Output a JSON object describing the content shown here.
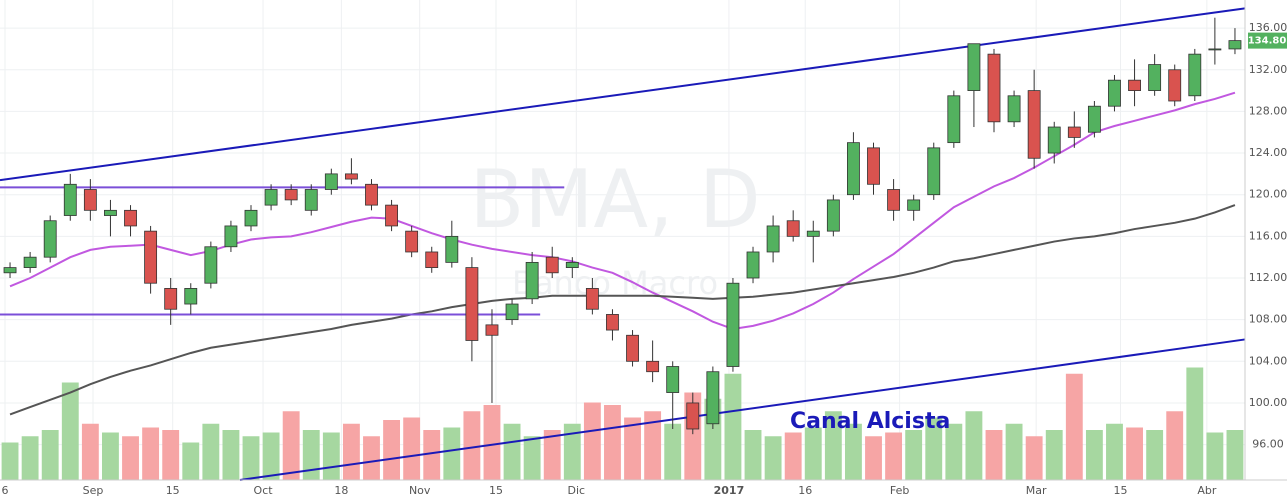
{
  "chart_data": {
    "type": "candlestick",
    "watermark": "BMA, D",
    "watermark_subtitle": "Banco Macro",
    "annotation": "Canal Alcista",
    "up_color": "#53b15f",
    "down_color": "#d9534f",
    "up_volume_color": "#a6d7a0",
    "down_volume_color": "#f6a5a5",
    "ma_series": [
      {
        "color": "#c158e0",
        "values": [
          111.2,
          112.0,
          113.0,
          114.0,
          114.7,
          115.0,
          115.1,
          115.2,
          114.7,
          114.2,
          114.6,
          115.2,
          115.7,
          115.9,
          116.0,
          116.4,
          116.9,
          117.4,
          117.8,
          117.7,
          117.0,
          116.3,
          115.7,
          115.2,
          114.8,
          114.5,
          114.2,
          114.0,
          113.6,
          113.0,
          112.5,
          111.6,
          110.6,
          109.7,
          108.8,
          107.8,
          107.1,
          107.4,
          107.9,
          108.6,
          109.5,
          110.6,
          111.9,
          113.1,
          114.3,
          115.8,
          117.3,
          118.8,
          119.8,
          120.8,
          121.6,
          122.6,
          123.7,
          124.8,
          126.0,
          126.6,
          127.1,
          127.6,
          128.1,
          128.7,
          129.2,
          129.8
        ]
      },
      {
        "color": "#555555",
        "values": [
          98.9,
          99.6,
          100.3,
          101.0,
          101.8,
          102.5,
          103.1,
          103.6,
          104.2,
          104.8,
          105.3,
          105.6,
          105.9,
          106.2,
          106.5,
          106.8,
          107.1,
          107.5,
          107.8,
          108.1,
          108.5,
          108.8,
          109.2,
          109.5,
          109.8,
          110.0,
          110.1,
          110.3,
          110.3,
          110.3,
          110.3,
          110.3,
          110.3,
          110.2,
          110.1,
          110.0,
          110.1,
          110.2,
          110.4,
          110.6,
          110.9,
          111.2,
          111.5,
          111.8,
          112.1,
          112.5,
          113.0,
          113.6,
          113.9,
          114.3,
          114.7,
          115.1,
          115.5,
          115.8,
          116.0,
          116.3,
          116.7,
          117.0,
          117.3,
          117.7,
          118.3,
          119.0
        ]
      }
    ],
    "ohlc": [
      [
        112.5,
        113.5,
        112,
        113
      ],
      [
        113,
        114.5,
        112.5,
        114
      ],
      [
        114,
        118,
        113.5,
        117.5
      ],
      [
        118,
        122,
        117.5,
        121
      ],
      [
        120.5,
        121.5,
        117.5,
        118.5
      ],
      [
        118,
        119.5,
        116,
        118.5
      ],
      [
        118.5,
        119,
        116,
        117
      ],
      [
        116.5,
        117,
        110.5,
        111.5
      ],
      [
        111,
        112,
        107.5,
        109
      ],
      [
        109.5,
        111.5,
        108.5,
        111
      ],
      [
        111.5,
        115.5,
        111,
        115
      ],
      [
        115,
        117.5,
        114.5,
        117
      ],
      [
        117,
        119,
        116.5,
        118.5
      ],
      [
        119,
        121,
        118.5,
        120.5
      ],
      [
        120.5,
        121,
        119,
        119.5
      ],
      [
        118.5,
        121,
        118,
        120.5
      ],
      [
        120.5,
        122.5,
        120,
        122
      ],
      [
        122,
        123.5,
        121,
        121.5
      ],
      [
        121,
        121.5,
        118.5,
        119
      ],
      [
        119,
        119.5,
        116.5,
        117
      ],
      [
        116.5,
        117,
        114,
        114.5
      ],
      [
        114.5,
        115,
        112.5,
        113
      ],
      [
        113.5,
        117.5,
        113,
        116
      ],
      [
        113,
        114,
        104,
        106
      ],
      [
        107.5,
        109,
        100,
        106.5
      ],
      [
        108,
        110,
        107.5,
        109.5
      ],
      [
        110,
        114.5,
        109.5,
        113.5
      ],
      [
        114,
        115,
        112,
        112.5
      ],
      [
        113,
        114,
        112,
        113.5
      ],
      [
        111,
        112,
        108.5,
        109
      ],
      [
        108.5,
        109,
        106,
        107
      ],
      [
        106.5,
        107,
        103.5,
        104
      ],
      [
        104,
        106,
        102,
        103
      ],
      [
        101,
        104,
        97.5,
        103.5
      ],
      [
        100,
        101,
        97,
        97.5
      ],
      [
        98,
        103.5,
        97.5,
        103
      ],
      [
        103.5,
        112,
        103,
        111.5
      ],
      [
        112,
        115,
        111.5,
        114.5
      ],
      [
        114.5,
        118,
        113.5,
        117
      ],
      [
        117.5,
        118.5,
        115.5,
        116
      ],
      [
        116,
        117.5,
        113.5,
        116.5
      ],
      [
        116.5,
        120,
        116,
        119.5
      ],
      [
        120,
        126,
        119.5,
        125
      ],
      [
        124.5,
        125,
        120,
        121
      ],
      [
        120.5,
        121.5,
        117.5,
        118.5
      ],
      [
        118.5,
        120,
        117.5,
        119.5
      ],
      [
        120,
        125,
        119.5,
        124.5
      ],
      [
        125,
        130,
        124.5,
        129.5
      ],
      [
        130,
        134.5,
        126.5,
        134.5
      ],
      [
        133.5,
        134,
        126,
        127
      ],
      [
        127,
        130,
        126.5,
        129.5
      ],
      [
        130,
        132,
        122.5,
        123.5
      ],
      [
        124,
        127,
        123,
        126.5
      ],
      [
        126.5,
        128,
        124.5,
        125.5
      ],
      [
        126,
        129,
        125.5,
        128.5
      ],
      [
        128.5,
        131.5,
        128,
        131
      ],
      [
        131,
        133,
        128.5,
        130
      ],
      [
        130,
        133.5,
        129.5,
        132.5
      ],
      [
        132,
        132.5,
        128.5,
        129
      ],
      [
        129.5,
        134,
        129,
        133.5
      ],
      [
        134,
        137,
        132.5,
        134
      ],
      [
        134,
        136,
        133.5,
        134.8
      ]
    ],
    "volumes": [
      30,
      35,
      40,
      78,
      45,
      38,
      35,
      42,
      40,
      30,
      45,
      40,
      35,
      38,
      55,
      40,
      38,
      45,
      35,
      48,
      50,
      40,
      42,
      55,
      60,
      45,
      35,
      40,
      45,
      62,
      60,
      50,
      55,
      45,
      70,
      65,
      85,
      40,
      35,
      38,
      42,
      55,
      45,
      35,
      38,
      40,
      50,
      45,
      55,
      40,
      45,
      35,
      40,
      85,
      40,
      45,
      42,
      40,
      55,
      90,
      38,
      40
    ],
    "volume_ylim": [
      0,
      100
    ],
    "trend_lines": [
      {
        "color": "#1a1ab8",
        "start": [
          -0.5,
          121.4
        ],
        "end": [
          61.5,
          137.9
        ]
      },
      {
        "color": "#1a1ab8",
        "start": [
          11.45,
          92.6
        ],
        "end": [
          61.5,
          106.1
        ]
      },
      {
        "color": "#7b4fd8",
        "start": [
          -0.5,
          120.7
        ],
        "end": [
          27.6,
          120.7
        ]
      },
      {
        "color": "#7b4fd8",
        "start": [
          -0.5,
          108.5
        ],
        "end": [
          26.4,
          108.5
        ]
      }
    ],
    "last_price": {
      "value": 134.8,
      "label": "134.80"
    },
    "xlim": [
      -0.5,
      61.5
    ],
    "ylim": [
      92.6,
      138.7
    ],
    "yticks": [
      {
        "value": 96,
        "label": "96.00"
      },
      {
        "value": 100,
        "label": "100.00"
      },
      {
        "value": 104,
        "label": "104.00"
      },
      {
        "value": 108,
        "label": "108.00"
      },
      {
        "value": 112,
        "label": "112.00"
      },
      {
        "value": 116,
        "label": "116.00"
      },
      {
        "value": 120,
        "label": "120.00"
      },
      {
        "value": 124,
        "label": "124.00"
      },
      {
        "value": 128,
        "label": "128.00"
      },
      {
        "value": 132,
        "label": "132.00"
      },
      {
        "value": 136,
        "label": "136.00"
      }
    ],
    "xticks": [
      {
        "value": -0.25,
        "label": "6"
      },
      {
        "value": 4.13,
        "label": "Sep"
      },
      {
        "value": 8.1,
        "label": "15"
      },
      {
        "value": 12.6,
        "label": "Oct"
      },
      {
        "value": 16.5,
        "label": "18"
      },
      {
        "value": 20.4,
        "label": "Nov"
      },
      {
        "value": 24.2,
        "label": "15"
      },
      {
        "value": 28.2,
        "label": "Dic"
      },
      {
        "value": 35.8,
        "label": "2017"
      },
      {
        "value": 39.6,
        "label": "16"
      },
      {
        "value": 44.3,
        "label": "Feb"
      },
      {
        "value": 51.1,
        "label": "Mar"
      },
      {
        "value": 55.3,
        "label": "15"
      },
      {
        "value": 59.6,
        "label": "Abr"
      }
    ],
    "grid": true
  }
}
